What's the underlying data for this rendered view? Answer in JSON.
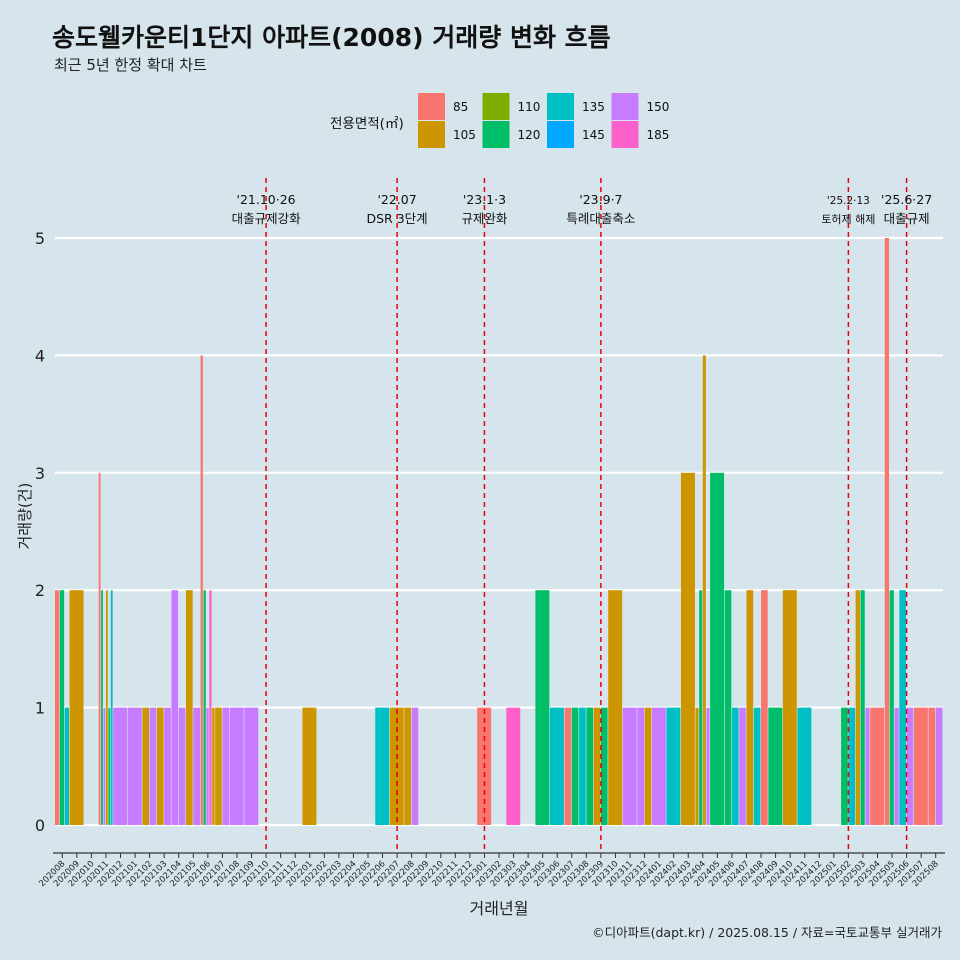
{
  "title": "송도웰카운티1단지 아파트(2008) 거래량 변화 흐름",
  "subtitle": "최근 5년 한정 확대 차트",
  "caption": "©디아파트(dapt.kr) / 2025.08.15 / 자료=국토교통부 실거래가",
  "colors": {
    "background": "#d6e4ec",
    "grid": "#ffffff",
    "vline": "#e8000b",
    "85": "#f8766d",
    "105": "#cd9600",
    "110": "#7cae00",
    "120": "#00be67",
    "135": "#00bfc4",
    "145": "#00a9ff",
    "150": "#c77cff",
    "185": "#ff61cc"
  },
  "chart_data": {
    "type": "bar",
    "xlabel": "거래년월",
    "ylabel": "거래량(건)",
    "ylim": [
      0,
      5.4
    ],
    "y_ticks": [
      0,
      1,
      2,
      3,
      4,
      5
    ],
    "legend": {
      "title": "전용면적(㎡)",
      "position": "top",
      "entries": [
        "85",
        "105",
        "110",
        "120",
        "135",
        "145",
        "150",
        "185"
      ]
    },
    "categories": [
      "202008",
      "202009",
      "202010",
      "202011",
      "202012",
      "202101",
      "202102",
      "202103",
      "202104",
      "202105",
      "202106",
      "202107",
      "202108",
      "202109",
      "202110",
      "202111",
      "202112",
      "202201",
      "202202",
      "202203",
      "202204",
      "202205",
      "202206",
      "202207",
      "202208",
      "202209",
      "202210",
      "202211",
      "202212",
      "202301",
      "202302",
      "202303",
      "202304",
      "202305",
      "202306",
      "202307",
      "202308",
      "202309",
      "202310",
      "202311",
      "202312",
      "202401",
      "202402",
      "202403",
      "202404",
      "202405",
      "202406",
      "202407",
      "202408",
      "202409",
      "202410",
      "202411",
      "202412",
      "202501",
      "202502",
      "202503",
      "202504",
      "202505",
      "202506",
      "202507",
      "202508"
    ],
    "bars": [
      {
        "month": "202008",
        "series": [
          {
            "area": "85",
            "value": 2
          },
          {
            "area": "120",
            "value": 2
          },
          {
            "area": "135",
            "value": 1
          }
        ]
      },
      {
        "month": "202009",
        "series": [
          {
            "area": "105",
            "value": 2
          }
        ]
      },
      {
        "month": "202011",
        "series": [
          {
            "area": "85",
            "value": 3
          },
          {
            "area": "120",
            "value": 2
          },
          {
            "area": "150",
            "value": 1
          },
          {
            "area": "105",
            "value": 2
          },
          {
            "area": "120",
            "value": 1
          },
          {
            "area": "135",
            "value": 2
          }
        ]
      },
      {
        "month": "202012",
        "series": [
          {
            "area": "150",
            "value": 1
          }
        ]
      },
      {
        "month": "202101",
        "series": [
          {
            "area": "150",
            "value": 1
          }
        ]
      },
      {
        "month": "202102",
        "series": [
          {
            "area": "105",
            "value": 1
          },
          {
            "area": "150",
            "value": 1
          }
        ]
      },
      {
        "month": "202103",
        "series": [
          {
            "area": "105",
            "value": 1
          },
          {
            "area": "150",
            "value": 1
          }
        ]
      },
      {
        "month": "202104",
        "series": [
          {
            "area": "150",
            "value": 2
          },
          {
            "area": "150",
            "value": 1
          }
        ]
      },
      {
        "month": "202105",
        "series": [
          {
            "area": "105",
            "value": 2
          },
          {
            "area": "150",
            "value": 1
          }
        ]
      },
      {
        "month": "202106",
        "series": [
          {
            "area": "85",
            "value": 4
          },
          {
            "area": "120",
            "value": 2
          },
          {
            "area": "150",
            "value": 1
          },
          {
            "area": "185",
            "value": 2
          },
          {
            "area": "105",
            "value": 1
          }
        ]
      },
      {
        "month": "202107",
        "series": [
          {
            "area": "105",
            "value": 1
          },
          {
            "area": "150",
            "value": 1
          }
        ]
      },
      {
        "month": "202108",
        "series": [
          {
            "area": "150",
            "value": 1
          }
        ]
      },
      {
        "month": "202109",
        "series": [
          {
            "area": "150",
            "value": 1
          }
        ]
      },
      {
        "month": "202201",
        "series": [
          {
            "area": "105",
            "value": 1
          }
        ]
      },
      {
        "month": "202206",
        "series": [
          {
            "area": "135",
            "value": 1
          }
        ]
      },
      {
        "month": "202207",
        "series": [
          {
            "area": "105",
            "value": 1
          }
        ]
      },
      {
        "month": "202208",
        "series": [
          {
            "area": "105",
            "value": 1
          },
          {
            "area": "150",
            "value": 1
          }
        ]
      },
      {
        "month": "202301",
        "series": [
          {
            "area": "85",
            "value": 1
          }
        ]
      },
      {
        "month": "202303",
        "series": [
          {
            "area": "185",
            "value": 1
          }
        ]
      },
      {
        "month": "202305",
        "series": [
          {
            "area": "120",
            "value": 2
          }
        ]
      },
      {
        "month": "202306",
        "series": [
          {
            "area": "135",
            "value": 1
          }
        ]
      },
      {
        "month": "202307",
        "series": [
          {
            "area": "85",
            "value": 1
          },
          {
            "area": "120",
            "value": 1
          }
        ]
      },
      {
        "month": "202308",
        "series": [
          {
            "area": "135",
            "value": 1
          },
          {
            "area": "120",
            "value": 1
          }
        ]
      },
      {
        "month": "202309",
        "series": [
          {
            "area": "105",
            "value": 1
          },
          {
            "area": "120",
            "value": 1
          }
        ]
      },
      {
        "month": "202310",
        "series": [
          {
            "area": "105",
            "value": 2
          }
        ]
      },
      {
        "month": "202311",
        "series": [
          {
            "area": "150",
            "value": 1
          }
        ]
      },
      {
        "month": "202312",
        "series": [
          {
            "area": "150",
            "value": 1
          },
          {
            "area": "105",
            "value": 1
          }
        ]
      },
      {
        "month": "202401",
        "series": [
          {
            "area": "150",
            "value": 1
          }
        ]
      },
      {
        "month": "202402",
        "series": [
          {
            "area": "135",
            "value": 1
          }
        ]
      },
      {
        "month": "202403",
        "series": [
          {
            "area": "105",
            "value": 3
          }
        ]
      },
      {
        "month": "202404",
        "series": [
          {
            "area": "105",
            "value": 1
          },
          {
            "area": "120",
            "value": 2
          },
          {
            "area": "105",
            "value": 4
          },
          {
            "area": "150",
            "value": 1
          }
        ]
      },
      {
        "month": "202405",
        "series": [
          {
            "area": "120",
            "value": 3
          }
        ]
      },
      {
        "month": "202406",
        "series": [
          {
            "area": "120",
            "value": 2
          },
          {
            "area": "135",
            "value": 1
          }
        ]
      },
      {
        "month": "202407",
        "series": [
          {
            "area": "150",
            "value": 1
          },
          {
            "area": "105",
            "value": 2
          }
        ]
      },
      {
        "month": "202408",
        "series": [
          {
            "area": "135",
            "value": 1
          },
          {
            "area": "85",
            "value": 2
          }
        ]
      },
      {
        "month": "202409",
        "series": [
          {
            "area": "120",
            "value": 1
          }
        ]
      },
      {
        "month": "202410",
        "series": [
          {
            "area": "105",
            "value": 2
          }
        ]
      },
      {
        "month": "202411",
        "series": [
          {
            "area": "135",
            "value": 1
          }
        ]
      },
      {
        "month": "202502",
        "series": [
          {
            "area": "120",
            "value": 1
          },
          {
            "area": "135",
            "value": 1
          }
        ]
      },
      {
        "month": "202503",
        "series": [
          {
            "area": "105",
            "value": 2
          },
          {
            "area": "120",
            "value": 2
          },
          {
            "area": "150",
            "value": 1
          }
        ]
      },
      {
        "month": "202504",
        "series": [
          {
            "area": "85",
            "value": 1
          }
        ]
      },
      {
        "month": "202505",
        "series": [
          {
            "area": "85",
            "value": 5
          },
          {
            "area": "120",
            "value": 2
          },
          {
            "area": "150",
            "value": 1
          }
        ]
      },
      {
        "month": "202506",
        "series": [
          {
            "area": "135",
            "value": 2
          },
          {
            "area": "150",
            "value": 1
          }
        ]
      },
      {
        "month": "202507",
        "series": [
          {
            "area": "85",
            "value": 1
          }
        ]
      },
      {
        "month": "202508",
        "series": [
          {
            "area": "85",
            "value": 1
          },
          {
            "area": "150",
            "value": 1
          }
        ]
      }
    ],
    "events": [
      {
        "month": "202110",
        "date": "'21.10·26",
        "label": "대출규제강화"
      },
      {
        "month": "202207",
        "date": "'22.07",
        "label": "DSR 3단계"
      },
      {
        "month": "202301",
        "date": "'23.1·3",
        "label": "규제완화"
      },
      {
        "month": "202309",
        "date": "'23.9·7",
        "label": "특례대출축소"
      },
      {
        "month": "202502",
        "date": "'25.2·13",
        "label": "토허제 해제"
      },
      {
        "month": "202506",
        "date": "'25.6·27",
        "label": "대출규제"
      }
    ]
  }
}
